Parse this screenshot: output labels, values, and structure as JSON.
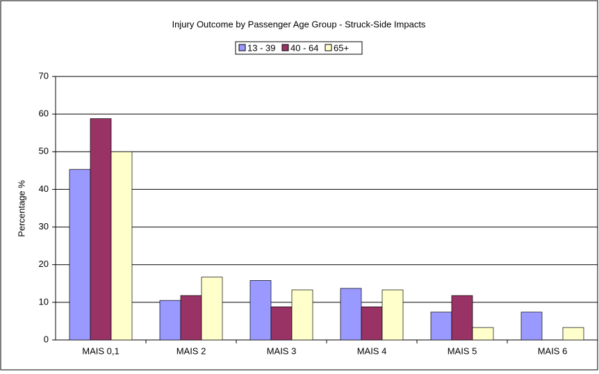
{
  "chart_data": {
    "type": "bar",
    "title": "Injury Outcome by Passenger Age Group - Struck-Side Impacts",
    "y_label": "Percentage %",
    "categories": [
      "MAIS 0,1",
      "MAIS 2",
      "MAIS 3",
      "MAIS 4",
      "MAIS 5",
      "MAIS 6"
    ],
    "series": [
      {
        "name": "13 - 39",
        "color": "#9999ff",
        "values": [
          45.3,
          10.5,
          15.8,
          13.7,
          7.4,
          7.4
        ]
      },
      {
        "name": "40 - 64",
        "color": "#993366",
        "values": [
          58.8,
          11.8,
          8.8,
          8.8,
          11.8,
          0
        ]
      },
      {
        "name": "65+",
        "color": "#ffffcc",
        "values": [
          50,
          16.7,
          13.3,
          13.3,
          3.3,
          3.3
        ]
      }
    ],
    "ylim": [
      0,
      70
    ],
    "yticks": [
      0,
      10,
      20,
      30,
      40,
      50,
      60,
      70
    ],
    "grid": true,
    "legend": "top"
  }
}
